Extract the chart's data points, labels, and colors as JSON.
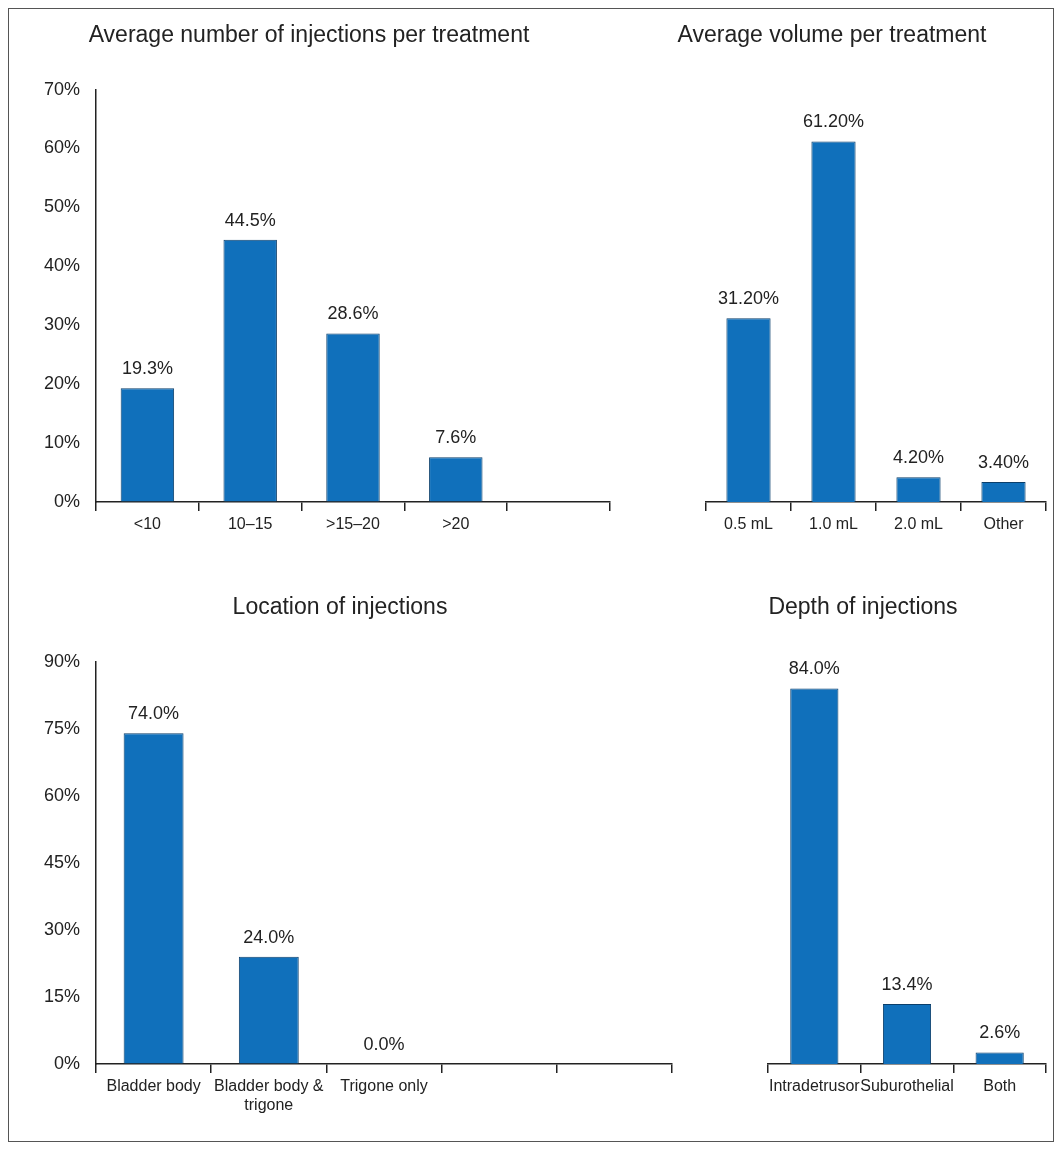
{
  "chart_data": [
    {
      "type": "bar",
      "title": "Average number of injections per treatment",
      "categories": [
        "<10",
        "10–15",
        ">15–20",
        ">20",
        null
      ],
      "values": [
        19.3,
        44.5,
        28.6,
        7.6,
        null
      ],
      "value_labels": [
        "19.3%",
        "44.5%",
        "28.6%",
        "7.6%",
        null
      ],
      "color": "#1070bb",
      "ylim": [
        0,
        70
      ],
      "yticks": [
        {
          "value": 0,
          "label": "0%"
        },
        {
          "value": 10,
          "label": "10%"
        },
        {
          "value": 20,
          "label": "20%"
        },
        {
          "value": 30,
          "label": "30%"
        },
        {
          "value": 40,
          "label": "40%"
        },
        {
          "value": 50,
          "label": "50%"
        },
        {
          "value": 60,
          "label": "60%"
        },
        {
          "value": 70,
          "label": "70%"
        }
      ]
    },
    {
      "type": "bar",
      "title": "Average volume per treatment",
      "categories": [
        "0.5 mL",
        "1.0 mL",
        "2.0 mL",
        "Other"
      ],
      "values": [
        31.2,
        61.2,
        4.2,
        3.4
      ],
      "value_labels": [
        "31.20%",
        "61.20%",
        "4.20%",
        "3.40%"
      ],
      "color": "#1070bb",
      "ylim": [
        0,
        70
      ],
      "tick_labels": "x"
    },
    {
      "type": "bar",
      "title": "Location of injections",
      "categories": [
        "Bladder body",
        "Bladder body & trigone",
        "Trigone only",
        null,
        null
      ],
      "values": [
        74.0,
        24.0,
        0.0,
        null,
        null
      ],
      "value_labels": [
        "74.0%",
        "24.0%",
        "0.0%",
        null,
        null
      ],
      "color": "#1070bb",
      "ylim": [
        0,
        90
      ],
      "yticks": [
        {
          "value": 0,
          "label": "0%"
        },
        {
          "value": 15,
          "label": "15%"
        },
        {
          "value": 30,
          "label": "30%"
        },
        {
          "value": 45,
          "label": "45%"
        },
        {
          "value": 60,
          "label": "60%"
        },
        {
          "value": 75,
          "label": "75%"
        },
        {
          "value": 90,
          "label": "90%"
        }
      ]
    },
    {
      "type": "bar",
      "title": "Depth of injections",
      "categories": [
        "Intradetrusor",
        "Suburothelial",
        "Both"
      ],
      "values": [
        84.0,
        13.4,
        2.6
      ],
      "value_labels": [
        "84.0%",
        "13.4%",
        "2.6%"
      ],
      "color": "#1070bb",
      "ylim": [
        0,
        90
      ],
      "tick_labels": "x"
    }
  ]
}
